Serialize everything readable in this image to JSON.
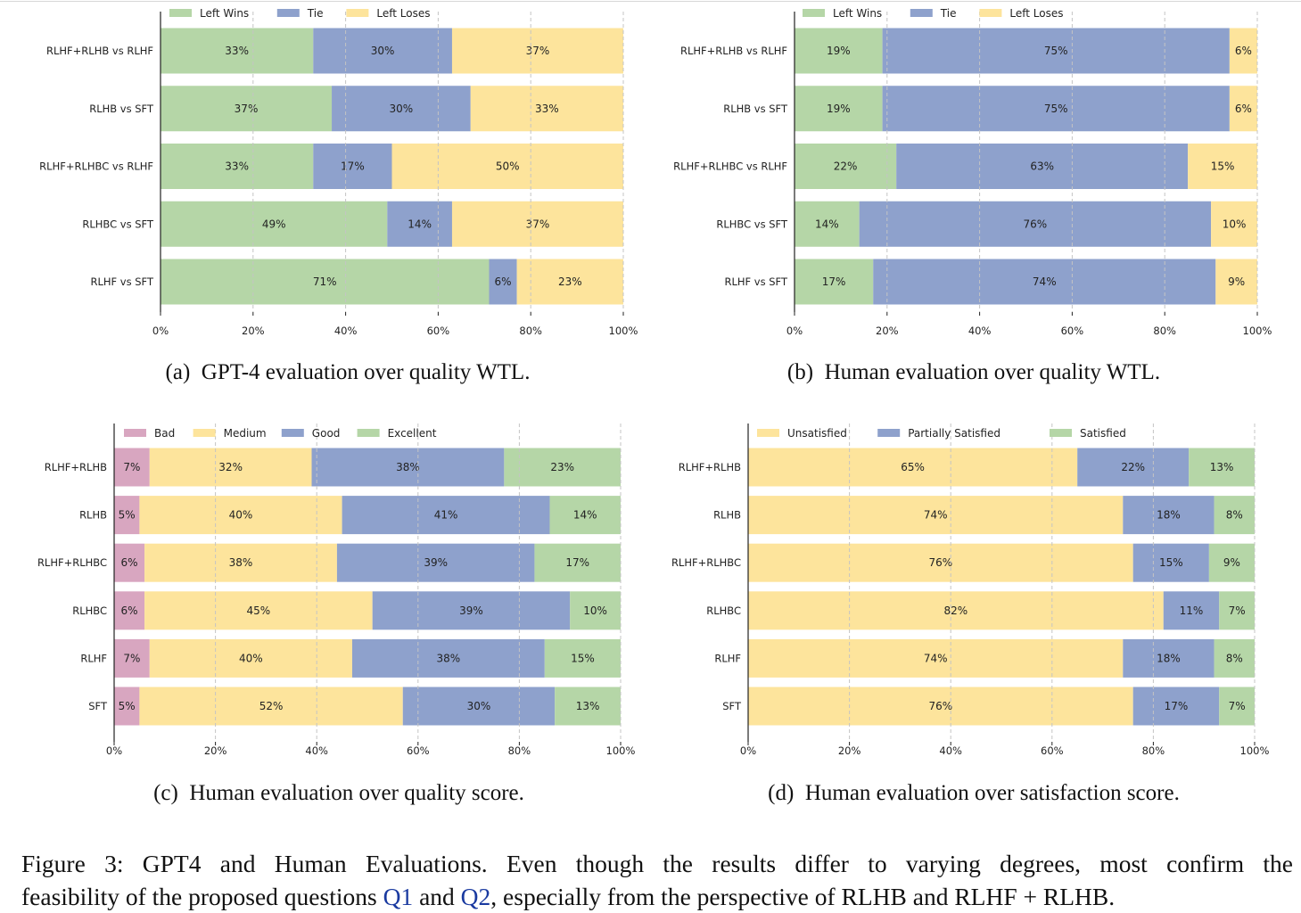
{
  "chart_data": [
    {
      "type": "bar",
      "orientation": "horizontal",
      "stacked": true,
      "categories": [
        "RLHF+RLHB vs RLHF",
        "RLHB vs SFT",
        "RLHF+RLHBC vs RLHF",
        "RLHBC vs SFT",
        "RLHF vs SFT"
      ],
      "series": [
        {
          "name": "Left Wins",
          "color": "#b5d6a7",
          "values": [
            33,
            37,
            33,
            49,
            71
          ]
        },
        {
          "name": "Tie",
          "color": "#8ea1cc",
          "values": [
            30,
            30,
            17,
            14,
            6
          ]
        },
        {
          "name": "Left Loses",
          "color": "#fde49c",
          "values": [
            37,
            33,
            50,
            37,
            23
          ]
        }
      ],
      "xlim": [
        0,
        100
      ],
      "xticks": [
        "0%",
        "20%",
        "40%",
        "60%",
        "80%",
        "100%"
      ],
      "grid": "x dashed",
      "legend": "top-left",
      "caption_label": "(a)",
      "caption": "GPT-4 evaluation over quality WTL."
    },
    {
      "type": "bar",
      "orientation": "horizontal",
      "stacked": true,
      "categories": [
        "RLHF+RLHB vs RLHF",
        "RLHB vs SFT",
        "RLHF+RLHBC vs RLHF",
        "RLHBC vs SFT",
        "RLHF vs SFT"
      ],
      "series": [
        {
          "name": "Left Wins",
          "color": "#b5d6a7",
          "values": [
            19,
            19,
            22,
            14,
            17
          ]
        },
        {
          "name": "Tie",
          "color": "#8ea1cc",
          "values": [
            75,
            75,
            63,
            76,
            74
          ]
        },
        {
          "name": "Left Loses",
          "color": "#fde49c",
          "values": [
            6,
            6,
            15,
            10,
            9
          ]
        }
      ],
      "xlim": [
        0,
        100
      ],
      "xticks": [
        "0%",
        "20%",
        "40%",
        "60%",
        "80%",
        "100%"
      ],
      "grid": "x dashed",
      "legend": "top-left",
      "caption_label": "(b)",
      "caption": "Human evaluation over quality WTL."
    },
    {
      "type": "bar",
      "orientation": "horizontal",
      "stacked": true,
      "categories": [
        "RLHF+RLHB",
        "RLHB",
        "RLHF+RLHBC",
        "RLHBC",
        "RLHF",
        "SFT"
      ],
      "series": [
        {
          "name": "Bad",
          "color": "#d8a6c0",
          "values": [
            7,
            5,
            6,
            6,
            7,
            5
          ]
        },
        {
          "name": "Medium",
          "color": "#fde49c",
          "values": [
            32,
            40,
            38,
            45,
            40,
            52
          ]
        },
        {
          "name": "Good",
          "color": "#8ea1cc",
          "values": [
            38,
            41,
            39,
            39,
            38,
            30
          ]
        },
        {
          "name": "Excellent",
          "color": "#b5d6a7",
          "values": [
            23,
            14,
            17,
            10,
            15,
            13
          ]
        }
      ],
      "xlim": [
        0,
        100
      ],
      "xticks": [
        "0%",
        "20%",
        "40%",
        "60%",
        "80%",
        "100%"
      ],
      "grid": "x dashed",
      "legend": "top-left",
      "caption_label": "(c)",
      "caption": "Human evaluation over quality score."
    },
    {
      "type": "bar",
      "orientation": "horizontal",
      "stacked": true,
      "categories": [
        "RLHF+RLHB",
        "RLHB",
        "RLHF+RLHBC",
        "RLHBC",
        "RLHF",
        "SFT"
      ],
      "series": [
        {
          "name": "Unsatisfied",
          "color": "#fde49c",
          "values": [
            65,
            74,
            76,
            82,
            74,
            76
          ]
        },
        {
          "name": "Partially Satisfied",
          "color": "#8ea1cc",
          "values": [
            22,
            18,
            15,
            11,
            18,
            17
          ]
        },
        {
          "name": "Satisfied",
          "color": "#b5d6a7",
          "values": [
            13,
            8,
            9,
            7,
            8,
            7
          ]
        }
      ],
      "xlim": [
        0,
        100
      ],
      "xticks": [
        "0%",
        "20%",
        "40%",
        "60%",
        "80%",
        "100%"
      ],
      "grid": "x dashed",
      "legend": "top-left",
      "caption_label": "(d)",
      "caption": "Human evaluation over satisfaction score."
    }
  ],
  "figure_caption": {
    "line1": "Figure 3: GPT4 and Human Evaluations. Even though the results differ to varying degrees, most confirm the",
    "line2_a": "feasibility of the proposed questions ",
    "ref1": "Q1",
    "line2_b": " and ",
    "ref2": "Q2",
    "line2_c": ", especially from the perspective of RLHB and RLHF + RLHB."
  }
}
